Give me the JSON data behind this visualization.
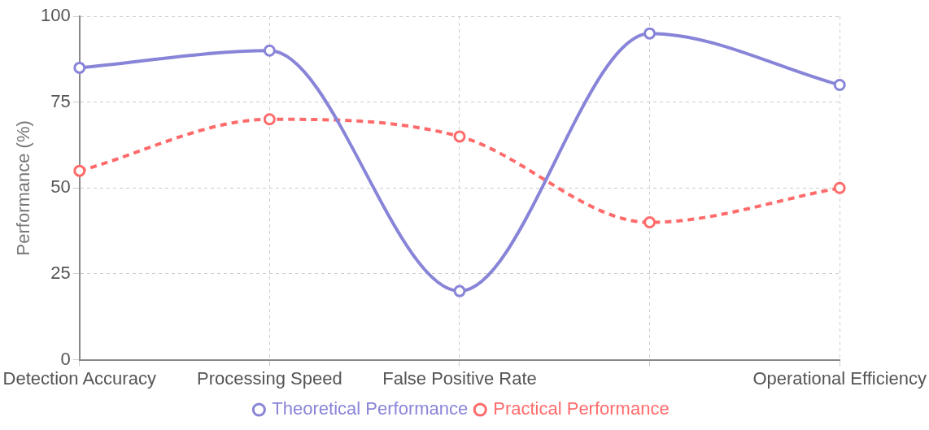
{
  "chart_data": {
    "type": "line",
    "ylabel": "Performance (%)",
    "categories": [
      "Detection Accuracy",
      "Processing Speed",
      "False Positive Rate",
      null,
      "Operational Efficiency"
    ],
    "series": [
      {
        "name": "Theoretical Performance",
        "color": "#8884d8",
        "values": [
          85,
          90,
          20,
          95,
          80
        ],
        "line_style": "solid"
      },
      {
        "name": "Practical Performance",
        "color": "#ff6b6b",
        "values": [
          55,
          70,
          65,
          40,
          50
        ],
        "line_style": "dashed"
      }
    ],
    "ylim": [
      0,
      100
    ],
    "yticks": [
      0,
      25,
      50,
      75,
      100
    ],
    "grid": true,
    "legend": "bottom",
    "marker": "circle"
  }
}
